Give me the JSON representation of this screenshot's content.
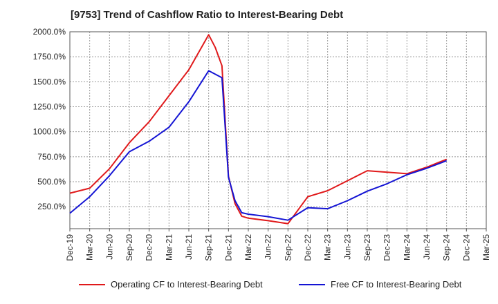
{
  "chart_data": {
    "type": "line",
    "title": "[9753]  Trend of Cashflow Ratio to Interest-Bearing Debt",
    "xlabel": "",
    "ylabel": "",
    "x_ticks": [
      "Dec-19",
      "Mar-20",
      "Jun-20",
      "Sep-20",
      "Dec-20",
      "Mar-21",
      "Jun-21",
      "Sep-21",
      "Dec-21",
      "Mar-22",
      "Jun-22",
      "Sep-22",
      "Dec-22",
      "Mar-23",
      "Jun-23",
      "Sep-23",
      "Dec-23",
      "Mar-24",
      "Jun-24",
      "Sep-24",
      "Dec-24",
      "Mar-25"
    ],
    "y_ticks": [
      "250.0%",
      "500.0%",
      "750.0%",
      "1000.0%",
      "1250.0%",
      "1500.0%",
      "1750.0%",
      "2000.0%"
    ],
    "ylim": [
      30,
      2000
    ],
    "grid": true,
    "legend_position": "bottom",
    "series": [
      {
        "name": "Operating CF to Interest-Bearing Debt",
        "color": "#e0191b",
        "points": [
          [
            0,
            385
          ],
          [
            1,
            435
          ],
          [
            2,
            630
          ],
          [
            3,
            890
          ],
          [
            4,
            1100
          ],
          [
            5,
            1360
          ],
          [
            6,
            1620
          ],
          [
            7,
            1970
          ],
          [
            7.33,
            1845
          ],
          [
            7.67,
            1660
          ],
          [
            8,
            555
          ],
          [
            8.33,
            280
          ],
          [
            8.67,
            155
          ],
          [
            9,
            135
          ],
          [
            10,
            110
          ],
          [
            11,
            80
          ],
          [
            12,
            350
          ],
          [
            13,
            410
          ],
          [
            14,
            510
          ],
          [
            15,
            610
          ],
          [
            16,
            595
          ],
          [
            17,
            580
          ],
          [
            18,
            645
          ],
          [
            19,
            725
          ]
        ]
      },
      {
        "name": "Free CF to Interest-Bearing Debt",
        "color": "#1414d4",
        "points": [
          [
            0,
            185
          ],
          [
            1,
            350
          ],
          [
            2,
            560
          ],
          [
            3,
            800
          ],
          [
            4,
            905
          ],
          [
            5,
            1045
          ],
          [
            6,
            1300
          ],
          [
            7,
            1610
          ],
          [
            7.67,
            1540
          ],
          [
            8,
            545
          ],
          [
            8.33,
            310
          ],
          [
            8.67,
            190
          ],
          [
            9,
            175
          ],
          [
            10,
            150
          ],
          [
            11,
            115
          ],
          [
            12,
            240
          ],
          [
            13,
            230
          ],
          [
            14,
            310
          ],
          [
            15,
            405
          ],
          [
            16,
            480
          ],
          [
            17,
            570
          ],
          [
            18,
            635
          ],
          [
            19,
            710
          ]
        ]
      }
    ]
  }
}
